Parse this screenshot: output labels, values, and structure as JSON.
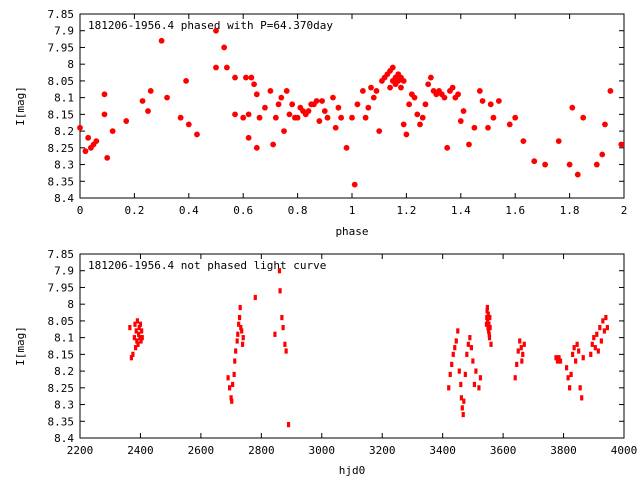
{
  "colors": {
    "points": "#ff0000",
    "axes": "#000000",
    "background": "#ffffff"
  },
  "chart_data": [
    {
      "type": "scatter",
      "title": "181206-1956.4 phased with P=64.370day",
      "xlabel": "phase",
      "ylabel": "I[mag]",
      "xlim": [
        0,
        2
      ],
      "ylim": [
        8.4,
        7.85
      ],
      "y_inverted": true,
      "grid": false,
      "marker": "filled-circle",
      "xticks": [
        "0",
        "0.2",
        "0.4",
        "0.6",
        "0.8",
        "1",
        "1.2",
        "1.4",
        "1.6",
        "1.8",
        "2"
      ],
      "yticks": [
        "7.85",
        "7.9",
        "7.95",
        "8",
        "8.05",
        "8.1",
        "8.15",
        "8.2",
        "8.25",
        "8.3",
        "8.35",
        "8.4"
      ],
      "series": [
        {
          "points": [
            [
              0.0,
              8.19
            ],
            [
              0.02,
              8.26
            ],
            [
              0.03,
              8.22
            ],
            [
              0.04,
              8.25
            ],
            [
              0.05,
              8.24
            ],
            [
              0.06,
              8.23
            ],
            [
              0.09,
              8.15
            ],
            [
              0.09,
              8.09
            ],
            [
              0.1,
              8.28
            ],
            [
              0.12,
              8.2
            ],
            [
              0.17,
              8.17
            ],
            [
              0.23,
              8.11
            ],
            [
              0.25,
              8.14
            ],
            [
              0.26,
              8.08
            ],
            [
              0.3,
              7.93
            ],
            [
              0.32,
              8.1
            ],
            [
              0.37,
              8.16
            ],
            [
              0.39,
              8.05
            ],
            [
              0.4,
              8.18
            ],
            [
              0.43,
              8.21
            ],
            [
              0.5,
              8.01
            ],
            [
              0.5,
              7.9
            ],
            [
              0.53,
              7.95
            ],
            [
              0.54,
              8.01
            ],
            [
              0.57,
              8.15
            ],
            [
              0.57,
              8.04
            ],
            [
              0.6,
              8.16
            ],
            [
              0.61,
              8.04
            ],
            [
              0.62,
              8.15
            ],
            [
              0.62,
              8.22
            ],
            [
              0.63,
              8.04
            ],
            [
              0.64,
              8.06
            ],
            [
              0.65,
              8.09
            ],
            [
              0.65,
              8.25
            ],
            [
              0.66,
              8.16
            ],
            [
              0.68,
              8.13
            ],
            [
              0.7,
              8.08
            ],
            [
              0.71,
              8.24
            ],
            [
              0.72,
              8.16
            ],
            [
              0.73,
              8.12
            ],
            [
              0.74,
              8.1
            ],
            [
              0.75,
              8.2
            ],
            [
              0.76,
              8.08
            ],
            [
              0.77,
              8.15
            ],
            [
              0.78,
              8.12
            ],
            [
              0.79,
              8.16
            ],
            [
              0.8,
              8.16
            ],
            [
              0.81,
              8.13
            ],
            [
              0.82,
              8.14
            ],
            [
              0.83,
              8.15
            ],
            [
              0.84,
              8.14
            ],
            [
              0.85,
              8.12
            ],
            [
              0.86,
              8.12
            ],
            [
              0.87,
              8.11
            ],
            [
              0.88,
              8.17
            ],
            [
              0.89,
              8.11
            ],
            [
              0.9,
              8.14
            ],
            [
              0.91,
              8.16
            ],
            [
              0.93,
              8.1
            ],
            [
              0.94,
              8.19
            ],
            [
              0.95,
              8.13
            ],
            [
              0.96,
              8.16
            ],
            [
              0.98,
              8.25
            ],
            [
              1.0,
              8.16
            ],
            [
              1.01,
              8.36
            ],
            [
              1.02,
              8.12
            ],
            [
              1.04,
              8.08
            ],
            [
              1.05,
              8.16
            ],
            [
              1.06,
              8.13
            ],
            [
              1.07,
              8.07
            ],
            [
              1.08,
              8.1
            ],
            [
              1.09,
              8.08
            ],
            [
              1.1,
              8.2
            ],
            [
              1.11,
              8.05
            ],
            [
              1.12,
              8.04
            ],
            [
              1.13,
              8.03
            ],
            [
              1.14,
              8.07
            ],
            [
              1.14,
              8.02
            ],
            [
              1.15,
              8.05
            ],
            [
              1.15,
              8.01
            ],
            [
              1.16,
              8.04
            ],
            [
              1.16,
              8.06
            ],
            [
              1.17,
              8.03
            ],
            [
              1.17,
              8.05
            ],
            [
              1.18,
              8.04
            ],
            [
              1.18,
              8.07
            ],
            [
              1.19,
              8.05
            ],
            [
              1.19,
              8.18
            ],
            [
              1.2,
              8.21
            ],
            [
              1.21,
              8.12
            ],
            [
              1.22,
              8.09
            ],
            [
              1.23,
              8.1
            ],
            [
              1.24,
              8.15
            ],
            [
              1.25,
              8.18
            ],
            [
              1.26,
              8.16
            ],
            [
              1.27,
              8.12
            ],
            [
              1.28,
              8.06
            ],
            [
              1.29,
              8.04
            ],
            [
              1.3,
              8.08
            ],
            [
              1.31,
              8.09
            ],
            [
              1.32,
              8.08
            ],
            [
              1.33,
              8.09
            ],
            [
              1.34,
              8.1
            ],
            [
              1.35,
              8.25
            ],
            [
              1.36,
              8.08
            ],
            [
              1.37,
              8.07
            ],
            [
              1.38,
              8.1
            ],
            [
              1.39,
              8.09
            ],
            [
              1.4,
              8.17
            ],
            [
              1.41,
              8.14
            ],
            [
              1.43,
              8.24
            ],
            [
              1.45,
              8.19
            ],
            [
              1.47,
              8.08
            ],
            [
              1.48,
              8.11
            ],
            [
              1.5,
              8.19
            ],
            [
              1.51,
              8.12
            ],
            [
              1.52,
              8.16
            ],
            [
              1.54,
              8.11
            ],
            [
              1.58,
              8.18
            ],
            [
              1.6,
              8.16
            ],
            [
              1.63,
              8.23
            ],
            [
              1.67,
              8.29
            ],
            [
              1.71,
              8.3
            ],
            [
              1.76,
              8.23
            ],
            [
              1.8,
              8.3
            ],
            [
              1.81,
              8.13
            ],
            [
              1.83,
              8.33
            ],
            [
              1.85,
              8.16
            ],
            [
              1.9,
              8.3
            ],
            [
              1.92,
              8.27
            ],
            [
              1.93,
              8.18
            ],
            [
              1.95,
              8.08
            ],
            [
              1.99,
              8.24
            ]
          ]
        }
      ]
    },
    {
      "type": "scatter",
      "title": "181206-1956.4 not phased light curve",
      "xlabel": "hjd0",
      "ylabel": "I[mag]",
      "xlim": [
        2200,
        4000
      ],
      "ylim": [
        8.4,
        7.85
      ],
      "y_inverted": true,
      "grid": false,
      "marker": "small-diamond",
      "xticks": [
        "2200",
        "2400",
        "2600",
        "2800",
        "3000",
        "3200",
        "3400",
        "3600",
        "3800",
        "4000"
      ],
      "yticks": [
        "7.85",
        "7.9",
        "7.95",
        "8",
        "8.05",
        "8.1",
        "8.15",
        "8.2",
        "8.25",
        "8.3",
        "8.35",
        "8.4"
      ],
      "series": [
        {
          "points": [
            [
              2365,
              8.07
            ],
            [
              2370,
              8.16
            ],
            [
              2375,
              8.15
            ],
            [
              2380,
              8.1
            ],
            [
              2382,
              8.06
            ],
            [
              2384,
              8.13
            ],
            [
              2386,
              8.08
            ],
            [
              2388,
              8.11
            ],
            [
              2390,
              8.05
            ],
            [
              2392,
              8.12
            ],
            [
              2394,
              8.09
            ],
            [
              2396,
              8.07
            ],
            [
              2398,
              8.1
            ],
            [
              2400,
              8.06
            ],
            [
              2402,
              8.11
            ],
            [
              2404,
              8.08
            ],
            [
              2406,
              8.1
            ],
            [
              2690,
              8.22
            ],
            [
              2695,
              8.25
            ],
            [
              2700,
              8.28
            ],
            [
              2702,
              8.29
            ],
            [
              2705,
              8.24
            ],
            [
              2710,
              8.21
            ],
            [
              2712,
              8.17
            ],
            [
              2715,
              8.14
            ],
            [
              2720,
              8.11
            ],
            [
              2722,
              8.09
            ],
            [
              2725,
              8.06
            ],
            [
              2728,
              8.04
            ],
            [
              2730,
              8.01
            ],
            [
              2732,
              8.07
            ],
            [
              2735,
              8.08
            ],
            [
              2738,
              8.12
            ],
            [
              2740,
              8.1
            ],
            [
              2780,
              7.98
            ],
            [
              2845,
              8.09
            ],
            [
              2860,
              7.9
            ],
            [
              2862,
              7.96
            ],
            [
              2868,
              8.04
            ],
            [
              2872,
              8.07
            ],
            [
              2878,
              8.12
            ],
            [
              2882,
              8.14
            ],
            [
              2890,
              8.36
            ],
            [
              3420,
              8.25
            ],
            [
              3425,
              8.21
            ],
            [
              3430,
              8.18
            ],
            [
              3435,
              8.15
            ],
            [
              3440,
              8.13
            ],
            [
              3445,
              8.11
            ],
            [
              3450,
              8.08
            ],
            [
              3455,
              8.2
            ],
            [
              3460,
              8.24
            ],
            [
              3462,
              8.28
            ],
            [
              3465,
              8.31
            ],
            [
              3468,
              8.33
            ],
            [
              3470,
              8.29
            ],
            [
              3475,
              8.21
            ],
            [
              3480,
              8.15
            ],
            [
              3485,
              8.12
            ],
            [
              3490,
              8.1
            ],
            [
              3495,
              8.13
            ],
            [
              3500,
              8.17
            ],
            [
              3505,
              8.24
            ],
            [
              3510,
              8.2
            ],
            [
              3520,
              8.25
            ],
            [
              3525,
              8.22
            ],
            [
              3545,
              8.06
            ],
            [
              3546,
              8.04
            ],
            [
              3547,
              8.02
            ],
            [
              3548,
              8.01
            ],
            [
              3549,
              8.05
            ],
            [
              3550,
              8.07
            ],
            [
              3551,
              8.03
            ],
            [
              3552,
              8.08
            ],
            [
              3553,
              8.06
            ],
            [
              3554,
              8.09
            ],
            [
              3555,
              8.1
            ],
            [
              3556,
              8.04
            ],
            [
              3557,
              8.07
            ],
            [
              3560,
              8.12
            ],
            [
              3640,
              8.22
            ],
            [
              3645,
              8.18
            ],
            [
              3650,
              8.14
            ],
            [
              3655,
              8.11
            ],
            [
              3660,
              8.13
            ],
            [
              3662,
              8.17
            ],
            [
              3665,
              8.15
            ],
            [
              3670,
              8.12
            ],
            [
              3775,
              8.16
            ],
            [
              3780,
              8.17
            ],
            [
              3785,
              8.16
            ],
            [
              3790,
              8.17
            ],
            [
              3810,
              8.19
            ],
            [
              3815,
              8.22
            ],
            [
              3820,
              8.25
            ],
            [
              3825,
              8.21
            ],
            [
              3830,
              8.15
            ],
            [
              3835,
              8.13
            ],
            [
              3840,
              8.17
            ],
            [
              3845,
              8.12
            ],
            [
              3850,
              8.14
            ],
            [
              3855,
              8.25
            ],
            [
              3860,
              8.28
            ],
            [
              3865,
              8.16
            ],
            [
              3890,
              8.15
            ],
            [
              3895,
              8.12
            ],
            [
              3900,
              8.1
            ],
            [
              3905,
              8.13
            ],
            [
              3910,
              8.09
            ],
            [
              3915,
              8.14
            ],
            [
              3920,
              8.07
            ],
            [
              3925,
              8.11
            ],
            [
              3930,
              8.05
            ],
            [
              3935,
              8.08
            ],
            [
              3940,
              8.04
            ],
            [
              3945,
              8.07
            ]
          ]
        }
      ]
    }
  ]
}
